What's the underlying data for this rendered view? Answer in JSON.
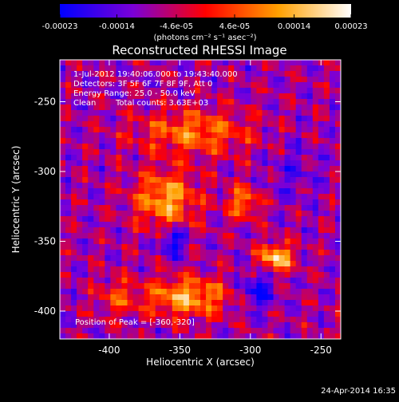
{
  "chart_data": {
    "type": "heatmap",
    "title": "Reconstructed RHESSI Image",
    "xlabel": "Heliocentric X (arcsec)",
    "ylabel": "Heliocentric Y (arcsec)",
    "xlim": [
      -435,
      -236
    ],
    "ylim": [
      -420,
      -220
    ],
    "x_ticks": [
      -400,
      -350,
      -300,
      -250
    ],
    "y_ticks": [
      -400,
      -350,
      -300,
      -250
    ],
    "colorbar": {
      "vmin": -0.00023,
      "vmax": 0.00023,
      "ticks": [
        -0.00023,
        -0.00014,
        -4.6e-05,
        4.6e-05,
        0.00014,
        0.00023
      ],
      "tick_labels": [
        "-0.00023",
        "-0.00014",
        "-4.6e-05",
        "4.6e-05",
        "0.00014",
        "0.00023"
      ],
      "units_label": "(photons cm⁻² s⁻¹ asec⁻²)",
      "colormap": [
        "#0000ff",
        "#8000ff",
        "#ff0000",
        "#ffa500",
        "#ffffff"
      ]
    },
    "annotations": {
      "time": "1-Jul-2012 19:40:06.000 to 19:43:40.000",
      "detectors": "Detectors: 3F 5F 6F 7F 8F 9F, Att 0",
      "energy": "Energy Range: 25.0 - 50.0 keV",
      "algorithm": "Clean",
      "counts": "Total counts: 3.63E+03",
      "peak": "Position of Peak = [-360,-320]"
    },
    "timestamp": "24-Apr-2014 16:35"
  }
}
